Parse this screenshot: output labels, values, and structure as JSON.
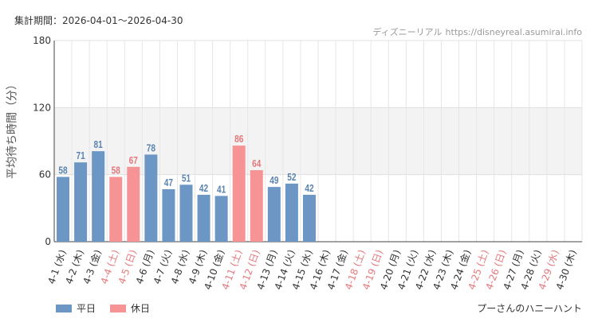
{
  "header": {
    "period_label": "集計期間：2026-04-01～2026-04-30",
    "site_name": "ディズニーリアル",
    "site_url": "https://disneyreal.asumirai.info"
  },
  "attraction_name": "プーさんのハニーハント",
  "legend": {
    "weekday_label": "平日",
    "holiday_label": "休日"
  },
  "colors": {
    "weekday": "#6c97c4",
    "holiday": "#f59395",
    "weekday_text": "#5b84b1",
    "holiday_text": "#e4787c",
    "band": "#f3f3f3"
  },
  "chart_data": {
    "type": "bar",
    "title": "",
    "xlabel": "",
    "ylabel": "平均待ち時間（分）",
    "ylim": [
      0,
      180
    ],
    "yticks": [
      0,
      60,
      120,
      180
    ],
    "band": [
      60,
      120
    ],
    "categories": [
      "4-1 (水)",
      "4-2 (木)",
      "4-3 (金)",
      "4-4 (土)",
      "4-5 (日)",
      "4-6 (月)",
      "4-7 (火)",
      "4-8 (水)",
      "4-9 (木)",
      "4-10 (金)",
      "4-11 (土)",
      "4-12 (日)",
      "4-13 (月)",
      "4-14 (火)",
      "4-15 (水)",
      "4-16 (木)",
      "4-17 (金)",
      "4-18 (土)",
      "4-19 (日)",
      "4-20 (月)",
      "4-21 (火)",
      "4-22 (水)",
      "4-23 (木)",
      "4-24 (金)",
      "4-25 (土)",
      "4-26 (日)",
      "4-27 (月)",
      "4-28 (火)",
      "4-29 (水)",
      "4-30 (木)"
    ],
    "holiday": [
      false,
      false,
      false,
      true,
      true,
      false,
      false,
      false,
      false,
      false,
      true,
      true,
      false,
      false,
      false,
      false,
      false,
      true,
      true,
      false,
      false,
      false,
      false,
      false,
      true,
      true,
      false,
      false,
      true,
      false
    ],
    "values": [
      58,
      71,
      81,
      58,
      67,
      78,
      47,
      51,
      42,
      41,
      86,
      64,
      49,
      52,
      42,
      null,
      null,
      null,
      null,
      null,
      null,
      null,
      null,
      null,
      null,
      null,
      null,
      null,
      null,
      null
    ]
  }
}
